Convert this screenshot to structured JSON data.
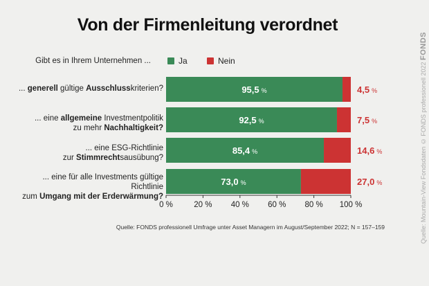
{
  "title": "Von der Firmenleitung verordnet",
  "question": "Gibt es in Ihrem Unternehmen ...",
  "source": "Quelle: FONDS professionell Umfrage unter Asset Managern im August/September 2022; N = 157–159",
  "side_credit": "Quelle: Mountain-View Fondsdaten © FONDS professionell 2022",
  "side_brand": "FONDS",
  "colors": {
    "ja": "#3a8a57",
    "nein": "#cc3333",
    "background": "#f0f0ee"
  },
  "chart_data": {
    "type": "bar",
    "orientation": "horizontal",
    "stacked": true,
    "categories": [
      "... generell gültige Ausschlusskriterien?",
      "... eine allgemeine Investmentpolitik zu mehr Nachhaltigkeit?",
      "... eine ESG-Richtlinie zur Stimmrechtsausübung?",
      "... eine für alle Investments gültige Richtlinie zum Umgang mit der Erderwärmung?"
    ],
    "series": [
      {
        "name": "Ja",
        "values": [
          95.5,
          92.5,
          85.4,
          73.0
        ],
        "labels": [
          "95,5",
          "92,5",
          "85,4",
          "73,0"
        ]
      },
      {
        "name": "Nein",
        "values": [
          4.5,
          7.5,
          14.6,
          27.0
        ],
        "labels": [
          "4,5",
          "7,5",
          "14,6",
          "27,0"
        ]
      }
    ],
    "unit": "%",
    "xlim": [
      0,
      100
    ],
    "xticks": [
      "0 %",
      "20 %",
      "40 %",
      "60 %",
      "80 %",
      "100 %"
    ],
    "legend_position": "top",
    "grid": false
  }
}
